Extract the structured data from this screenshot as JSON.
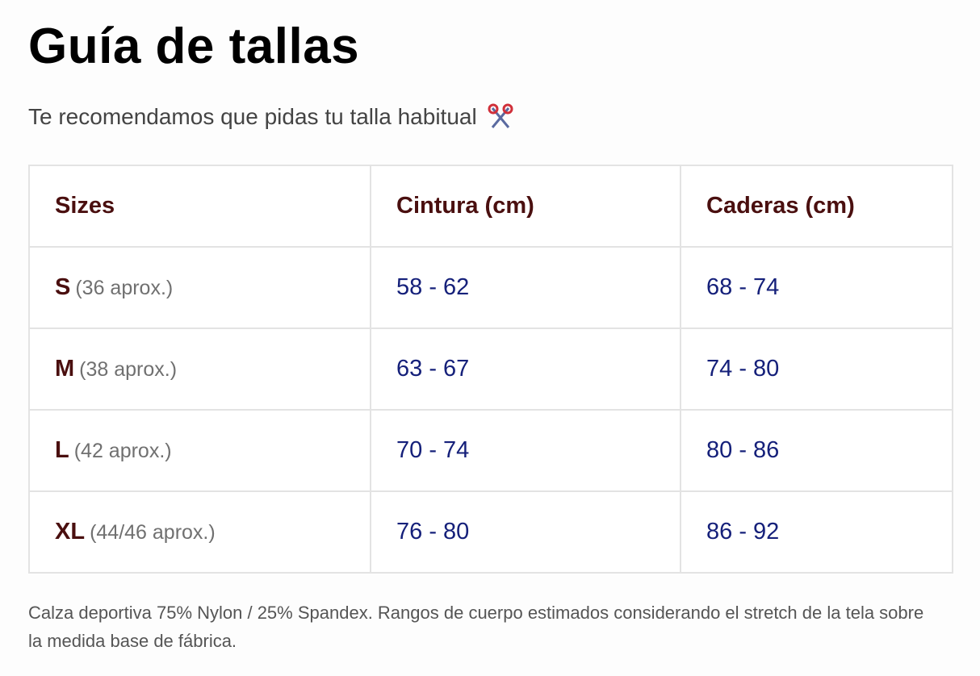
{
  "header": {
    "title": "Guía de tallas",
    "subtitle": "Te recomendamos que pidas tu talla habitual"
  },
  "table": {
    "columns": [
      "Sizes",
      "Cintura (cm)",
      "Caderas (cm)"
    ],
    "rows": [
      {
        "size": "S",
        "note": "(36 aprox.)",
        "waist": "58 - 62",
        "hips": "68 - 74"
      },
      {
        "size": "M",
        "note": "(38 aprox.)",
        "waist": "63 - 67",
        "hips": "74 - 80"
      },
      {
        "size": "L",
        "note": "(42 aprox.)",
        "waist": "70 - 74",
        "hips": "80 - 86"
      },
      {
        "size": "XL",
        "note": "(44/46 aprox.)",
        "waist": "76 - 80",
        "hips": "86 - 92"
      }
    ]
  },
  "footnote": "Calza deportiva 75% Nylon / 25% Spandex. Rangos de cuerpo estimados considerando el stretch de la tela sobre la medida base de fábrica."
}
